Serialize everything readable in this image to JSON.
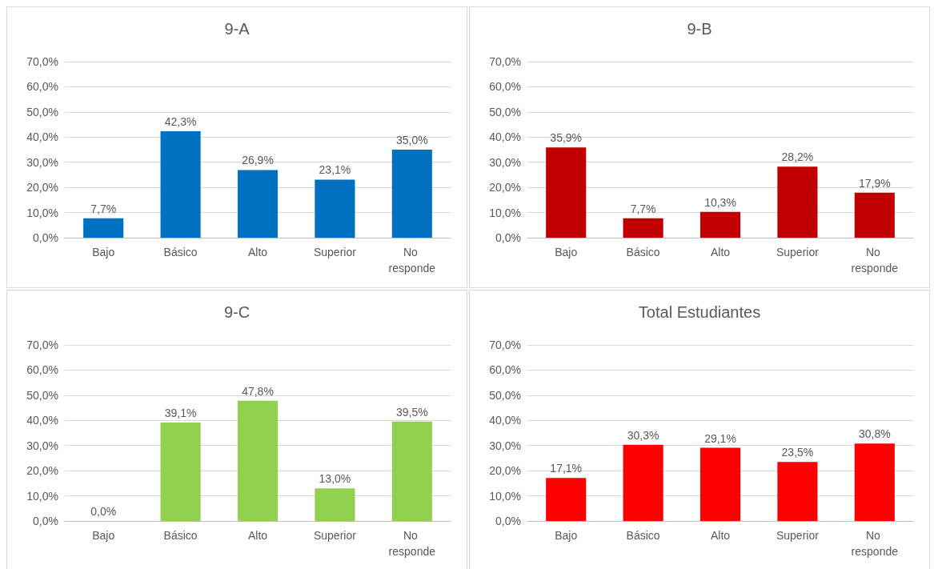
{
  "chart_data": [
    {
      "type": "bar",
      "title": "9-A",
      "categories": [
        "Bajo",
        "Básico",
        "Alto",
        "Superior",
        "No responde"
      ],
      "values": [
        7.7,
        42.3,
        26.9,
        23.1,
        35.0
      ],
      "value_labels": [
        "7,7%",
        "42,3%",
        "26,9%",
        "23,1%",
        "35,0%"
      ],
      "color": "#0070c0",
      "ylim": [
        0,
        70
      ],
      "yticks": [
        {
          "value": 0,
          "label": "0,0%"
        },
        {
          "value": 10,
          "label": "10,0%"
        },
        {
          "value": 20,
          "label": "20,0%"
        },
        {
          "value": 30,
          "label": "30,0%"
        },
        {
          "value": 40,
          "label": "40,0%"
        },
        {
          "value": 50,
          "label": "50,0%"
        },
        {
          "value": 60,
          "label": "60,0%"
        },
        {
          "value": 70,
          "label": "70,0%"
        }
      ],
      "grid": "y"
    },
    {
      "type": "bar",
      "title": "9-B",
      "categories": [
        "Bajo",
        "Básico",
        "Alto",
        "Superior",
        "No responde"
      ],
      "values": [
        35.9,
        7.7,
        10.3,
        28.2,
        17.9
      ],
      "value_labels": [
        "35,9%",
        "7,7%",
        "10,3%",
        "28,2%",
        "17,9%"
      ],
      "color": "#c00000",
      "ylim": [
        0,
        70
      ],
      "yticks": [
        {
          "value": 0,
          "label": "0,0%"
        },
        {
          "value": 10,
          "label": "10,0%"
        },
        {
          "value": 20,
          "label": "20,0%"
        },
        {
          "value": 30,
          "label": "30,0%"
        },
        {
          "value": 40,
          "label": "40,0%"
        },
        {
          "value": 50,
          "label": "50,0%"
        },
        {
          "value": 60,
          "label": "60,0%"
        },
        {
          "value": 70,
          "label": "70,0%"
        }
      ],
      "grid": "y"
    },
    {
      "type": "bar",
      "title": "9-C",
      "categories": [
        "Bajo",
        "Básico",
        "Alto",
        "Superior",
        "No responde"
      ],
      "values": [
        0.0,
        39.1,
        47.8,
        13.0,
        39.5
      ],
      "value_labels": [
        "0,0%",
        "39,1%",
        "47,8%",
        "13,0%",
        "39,5%"
      ],
      "color": "#92d050",
      "ylim": [
        0,
        70
      ],
      "yticks": [
        {
          "value": 0,
          "label": "0,0%"
        },
        {
          "value": 10,
          "label": "10,0%"
        },
        {
          "value": 20,
          "label": "20,0%"
        },
        {
          "value": 30,
          "label": "30,0%"
        },
        {
          "value": 40,
          "label": "40,0%"
        },
        {
          "value": 50,
          "label": "50,0%"
        },
        {
          "value": 60,
          "label": "60,0%"
        },
        {
          "value": 70,
          "label": "70,0%"
        }
      ],
      "grid": "y"
    },
    {
      "type": "bar",
      "title": "Total Estudiantes",
      "categories": [
        "Bajo",
        "Básico",
        "Alto",
        "Superior",
        "No responde"
      ],
      "values": [
        17.1,
        30.3,
        29.1,
        23.5,
        30.8
      ],
      "value_labels": [
        "17,1%",
        "30,3%",
        "29,1%",
        "23,5%",
        "30,8%"
      ],
      "color": "#ff0000",
      "ylim": [
        0,
        70
      ],
      "yticks": [
        {
          "value": 0,
          "label": "0,0%"
        },
        {
          "value": 10,
          "label": "10,0%"
        },
        {
          "value": 20,
          "label": "20,0%"
        },
        {
          "value": 30,
          "label": "30,0%"
        },
        {
          "value": 40,
          "label": "40,0%"
        },
        {
          "value": 50,
          "label": "50,0%"
        },
        {
          "value": 60,
          "label": "60,0%"
        },
        {
          "value": 70,
          "label": "70,0%"
        }
      ],
      "grid": "y"
    }
  ]
}
